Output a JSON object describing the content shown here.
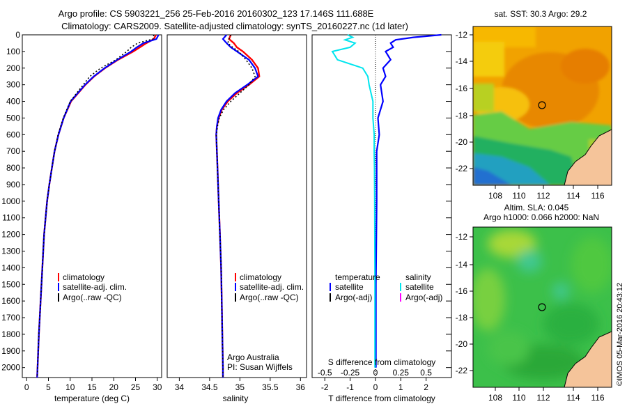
{
  "title_line1": "Argo profile: CS 5903221_256 25-Feb-2016 20160302_123 17.146S 111.688E",
  "title_line2": "Climatology: CARS2009. Satellite-adjusted climatology: synTS_20160227.nc (1d later)",
  "credit": "©IMOS 05-Mar-2016 20:43:12",
  "colors": {
    "climatology": "#ff0000",
    "satellite": "#0000ff",
    "argo": "#000000",
    "s_satellite": "#00e5ee",
    "s_argo": "#ff00ff"
  },
  "chart_data": [
    {
      "type": "line",
      "panel": "temperature",
      "xlabel": "temperature (deg C)",
      "ylabel": "",
      "xlim": [
        -1,
        31
      ],
      "ylim": [
        2060,
        0
      ],
      "xticks": [
        0,
        5,
        10,
        15,
        20,
        25,
        30
      ],
      "yticks": [
        0,
        100,
        200,
        300,
        400,
        500,
        600,
        700,
        800,
        900,
        1000,
        1100,
        1200,
        1300,
        1400,
        1500,
        1600,
        1700,
        1800,
        1900,
        2000
      ],
      "depth": [
        0,
        25,
        50,
        75,
        100,
        150,
        200,
        250,
        300,
        400,
        500,
        600,
        700,
        800,
        900,
        1000,
        1200,
        1400,
        1600,
        1800,
        2000,
        2060
      ],
      "legend": [
        "climatology",
        "satellite-adj. clim.",
        "Argo(..raw -QC)"
      ],
      "series": [
        {
          "name": "climatology",
          "values": [
            29.7,
            29.2,
            27.5,
            26.0,
            24.5,
            21.0,
            18.0,
            15.5,
            13.5,
            10.2,
            8.5,
            7.3,
            6.4,
            5.8,
            5.2,
            4.7,
            4.0,
            3.6,
            3.2,
            2.8,
            2.5,
            2.4
          ]
        },
        {
          "name": "satellite-adj. clim.",
          "values": [
            30.3,
            29.8,
            26.8,
            25.3,
            24.0,
            20.8,
            17.9,
            15.4,
            13.4,
            10.1,
            8.5,
            7.3,
            6.4,
            5.8,
            5.2,
            4.7,
            4.0,
            3.6,
            3.2,
            2.8,
            2.5,
            2.4
          ]
        },
        {
          "name": "Argo(..raw -QC)",
          "values": [
            29.2,
            29.0,
            25.5,
            24.0,
            23.0,
            20.5,
            17.0,
            14.5,
            13.0,
            10.0,
            8.4,
            7.2,
            6.4,
            5.8,
            5.2,
            4.7,
            4.0,
            3.6,
            3.2,
            2.8,
            2.5,
            2.4
          ]
        }
      ]
    },
    {
      "type": "line",
      "panel": "salinity",
      "xlabel": "salinity",
      "ylabel": "",
      "xlim": [
        33.8,
        36.1
      ],
      "ylim": [
        2060,
        0
      ],
      "xticks": [
        34,
        34.5,
        35,
        35.5,
        36
      ],
      "depth": [
        0,
        25,
        50,
        75,
        100,
        150,
        200,
        250,
        300,
        350,
        400,
        450,
        500,
        550,
        600,
        700,
        800,
        1000,
        1200,
        1400,
        1600,
        1800,
        2000,
        2060
      ],
      "legend": [
        "climatology",
        "satellite-adj. clim.",
        "Argo(..raw -QC)"
      ],
      "annotation": [
        "Argo Australia",
        "PI: Susan Wijffels"
      ],
      "series": [
        {
          "name": "climatology",
          "values": [
            34.85,
            34.82,
            34.9,
            34.95,
            35.05,
            35.2,
            35.3,
            35.32,
            35.15,
            34.95,
            34.8,
            34.7,
            34.65,
            34.62,
            34.61,
            34.62,
            34.63,
            34.65,
            34.67,
            34.69,
            34.7,
            34.71,
            34.72,
            34.72
          ]
        },
        {
          "name": "satellite-adj. clim.",
          "values": [
            34.78,
            34.72,
            34.78,
            34.85,
            34.95,
            35.15,
            35.25,
            35.3,
            35.12,
            34.92,
            34.78,
            34.69,
            34.64,
            34.62,
            34.61,
            34.62,
            34.63,
            34.65,
            34.67,
            34.69,
            34.7,
            34.71,
            34.72,
            34.72
          ]
        },
        {
          "name": "Argo(..raw -QC)",
          "values": [
            34.85,
            34.82,
            34.8,
            34.88,
            34.98,
            35.1,
            35.2,
            35.25,
            35.15,
            35.0,
            34.85,
            34.73,
            34.66,
            34.63,
            34.61,
            34.62,
            34.63,
            34.65,
            34.67,
            34.69,
            34.7,
            34.71,
            34.72,
            34.72
          ]
        }
      ]
    },
    {
      "type": "line",
      "panel": "difference",
      "xlabel_top": "S difference from climatology",
      "xlabel": "T difference from climatology",
      "xlim": [
        -2.5,
        3.0
      ],
      "ylim": [
        2060,
        0
      ],
      "xticks_t": [
        -2,
        -1,
        0,
        1,
        2
      ],
      "xticks_s": [
        "-0.5",
        "-0.25",
        "0",
        "0.25",
        "0.5"
      ],
      "depth": [
        0,
        15,
        30,
        50,
        75,
        100,
        150,
        200,
        250,
        300,
        400,
        500,
        600,
        700,
        800,
        1000,
        1500,
        2000
      ],
      "legend_temperature": [
        "temperature",
        "satellite",
        "Argo(-adj)"
      ],
      "legend_salinity": [
        "salinity",
        "satellite",
        "Argo(-adj)"
      ],
      "series": [
        {
          "name": "temperature satellite",
          "values": [
            2.6,
            1.5,
            0.8,
            0.6,
            0.7,
            0.4,
            0.6,
            0.3,
            0.4,
            0.2,
            0.3,
            0.1,
            0.15,
            0.05,
            0.05,
            0.05,
            0.02,
            0.02
          ]
        },
        {
          "name": "salinity satellite",
          "values": [
            -1.1,
            -0.9,
            -1.2,
            -0.8,
            -1.0,
            -1.7,
            -1.5,
            -0.5,
            -0.3,
            -0.25,
            -0.1,
            -0.1,
            -0.05,
            -0.05,
            -0.04,
            -0.03,
            -0.02,
            -0.02
          ]
        }
      ]
    }
  ],
  "maps": {
    "sst": {
      "title": "sat. SST: 30.3 Argo: 29.2",
      "lat_ticks": [
        "-12",
        "-14",
        "-16",
        "-18",
        "-20",
        "-22"
      ],
      "lon_ticks": [
        "108",
        "110",
        "112",
        "114",
        "116"
      ],
      "marker": {
        "lon": 111.688,
        "lat": -17.146
      }
    },
    "sla": {
      "title_line1": "Altim. SLA: 0.045",
      "title_line2": "Argo h1000: 0.066 h2000: NaN",
      "lat_ticks": [
        "-12",
        "-14",
        "-16",
        "-18",
        "-20",
        "-22"
      ],
      "lon_ticks": [
        "108",
        "110",
        "112",
        "114",
        "116"
      ],
      "marker": {
        "lon": 111.688,
        "lat": -17.146
      }
    }
  }
}
